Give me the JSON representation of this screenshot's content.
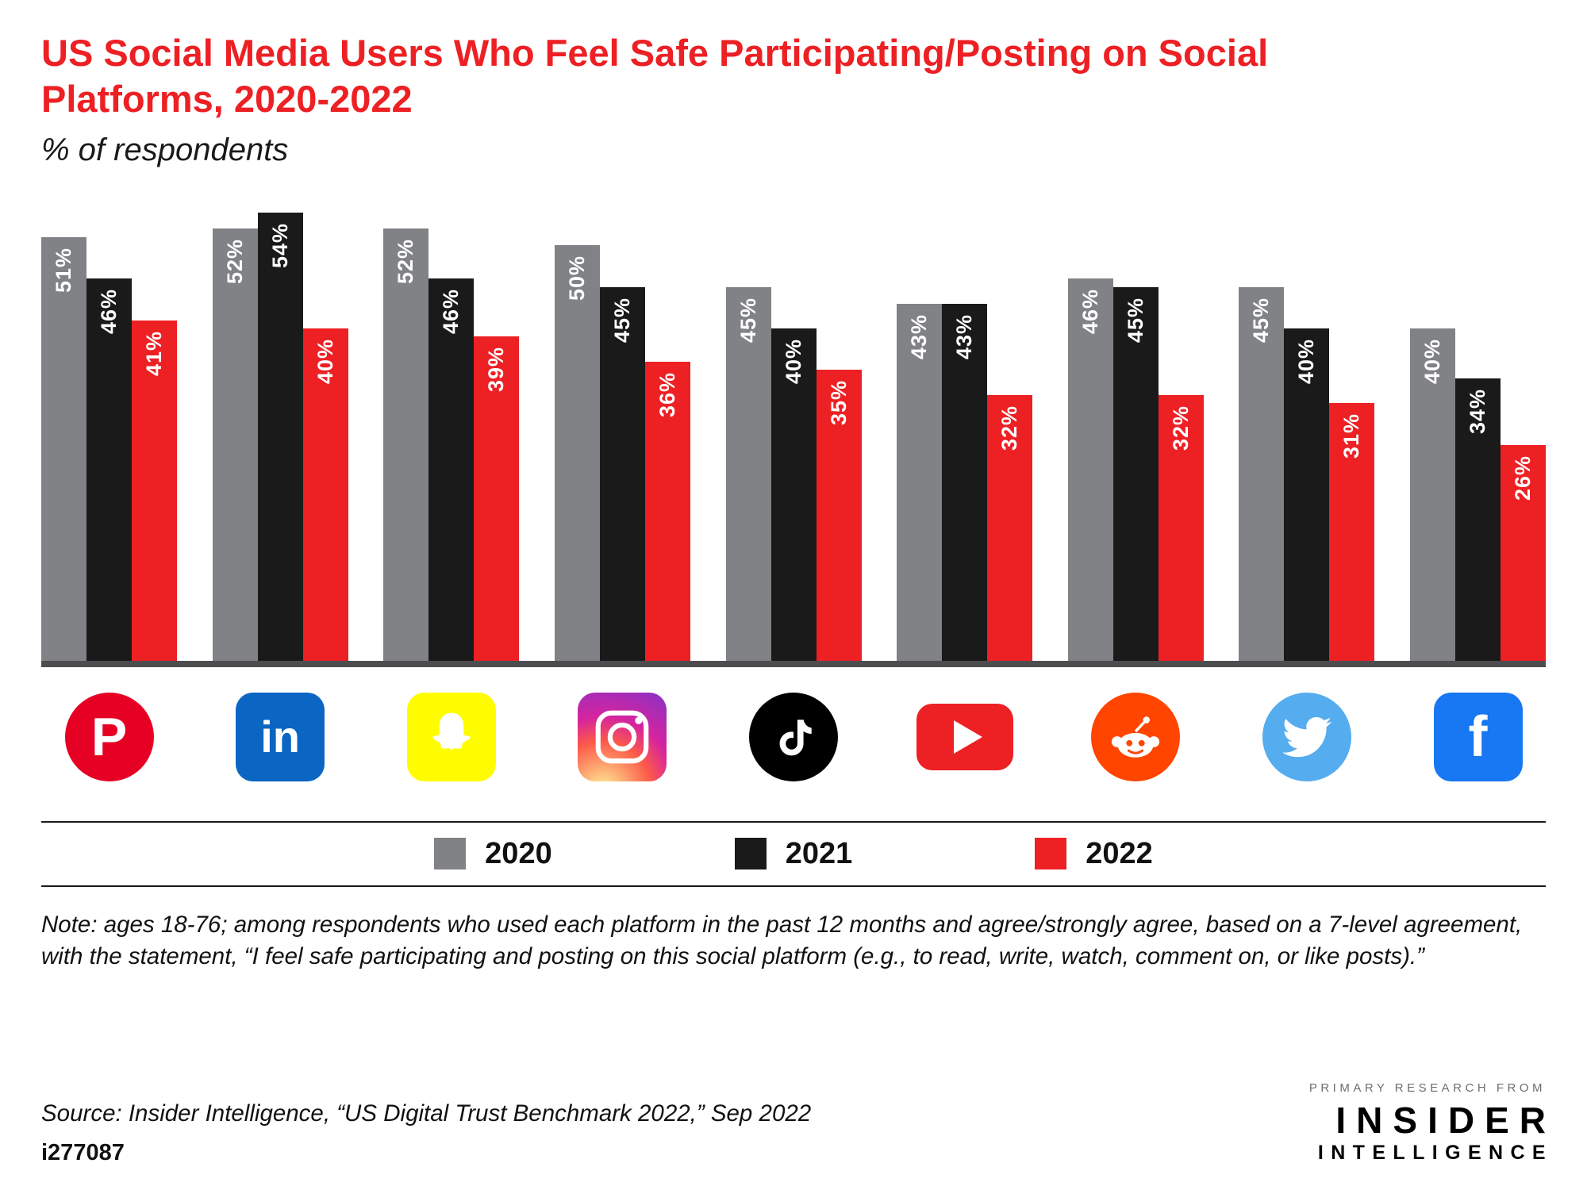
{
  "title": "US Social Media Users Who Feel Safe Participating/Posting on Social Platforms, 2020-2022",
  "subtitle": "% of respondents",
  "colors": {
    "accent_red": "#ed2024",
    "bar_gray": "#808285",
    "bar_black": "#1a1a1a",
    "bar_red": "#ed2024",
    "axis": "#4d4d4f"
  },
  "chart_data": {
    "type": "bar",
    "title": "US Social Media Users Who Feel Safe Participating/Posting on Social Platforms, 2020-2022",
    "ylabel": "% of respondents",
    "categories": [
      "Pinterest",
      "LinkedIn",
      "Snapchat",
      "Instagram",
      "TikTok",
      "YouTube",
      "Reddit",
      "Twitter",
      "Facebook"
    ],
    "category_icons": [
      "pinterest-icon",
      "linkedin-icon",
      "snapchat-icon",
      "instagram-icon",
      "tiktok-icon",
      "youtube-icon",
      "reddit-icon",
      "twitter-icon",
      "facebook-icon"
    ],
    "series": [
      {
        "name": "2020",
        "color": "#808285",
        "values": [
          51,
          52,
          52,
          50,
          45,
          43,
          46,
          45,
          40
        ]
      },
      {
        "name": "2021",
        "color": "#1a1a1a",
        "values": [
          46,
          54,
          46,
          45,
          40,
          43,
          45,
          40,
          34
        ]
      },
      {
        "name": "2022",
        "color": "#ed2024",
        "values": [
          41,
          40,
          39,
          36,
          35,
          32,
          32,
          31,
          26
        ]
      }
    ],
    "value_suffix": "%",
    "ylim": [
      0,
      54
    ],
    "grid": false,
    "legend_position": "bottom"
  },
  "footer": {
    "note": "Note: ages 18-76; among respondents who used each platform in the past 12 months and agree/strongly agree, based on a 7-level agreement, with the statement, “I feel safe participating and posting on this social platform (e.g., to read, write, watch, comment on, or like posts).”",
    "source": "Source: Insider Intelligence, “US Digital Trust Benchmark 2022,” Sep 2022",
    "chart_id": "i277087"
  },
  "branding": {
    "tagline": "PRIMARY RESEARCH FROM",
    "name_line1": "INSIDER",
    "name_line2": "INTELLIGENCE"
  }
}
